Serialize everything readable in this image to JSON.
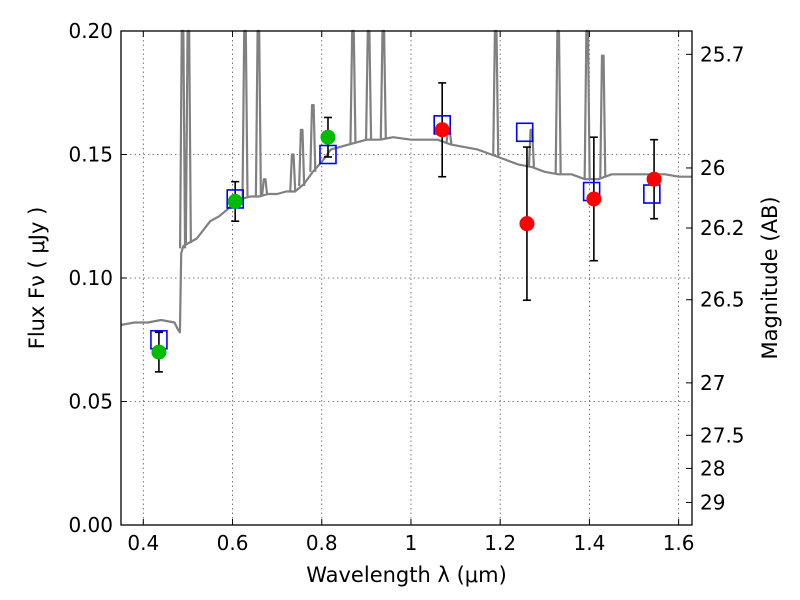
{
  "chart_data": {
    "type": "scatter",
    "xlabel": "Wavelength  λ (μm)",
    "ylabel": "Flux  Fν  ( μJy )",
    "y2label": "Magnitude (AB)",
    "xlim": [
      0.35,
      1.63
    ],
    "ylim": [
      0.0,
      0.2
    ],
    "grid": true,
    "x_ticks": [
      0.4,
      0.6,
      0.8,
      1.0,
      1.2,
      1.4,
      1.6
    ],
    "x_tick_labels": [
      "0.4",
      "0.6",
      "0.8",
      "1",
      "1.2",
      "1.4",
      "1.6"
    ],
    "y_ticks": [
      0.0,
      0.05,
      0.1,
      0.15,
      0.2
    ],
    "y_tick_labels": [
      "0.00",
      "0.05",
      "0.10",
      "0.15",
      "0.20"
    ],
    "y2_ticks": [
      25.7,
      26,
      26.2,
      26.5,
      27,
      27.5,
      28,
      29
    ],
    "y2_tick_labels": [
      "25.7",
      "26",
      "26.2",
      "26.5",
      "27",
      "27.5",
      "28",
      "29"
    ],
    "model_spectrum": {
      "color": "#808080",
      "x": [
        0.35,
        0.38,
        0.41,
        0.44,
        0.47,
        0.478,
        0.482,
        0.485,
        0.488,
        0.49,
        0.5,
        0.52,
        0.55,
        0.57,
        0.59,
        0.6,
        0.62,
        0.64,
        0.66,
        0.68,
        0.7,
        0.72,
        0.74,
        0.76,
        0.78,
        0.8,
        0.82,
        0.84,
        0.86,
        0.88,
        0.9,
        0.93,
        0.96,
        1.0,
        1.03,
        1.06,
        1.09,
        1.12,
        1.15,
        1.18,
        1.21,
        1.24,
        1.27,
        1.3,
        1.33,
        1.36,
        1.39,
        1.42,
        1.45,
        1.48,
        1.51,
        1.54,
        1.57,
        1.6,
        1.63
      ],
      "y": [
        0.081,
        0.082,
        0.082,
        0.083,
        0.082,
        0.079,
        0.078,
        0.11,
        0.112,
        0.113,
        0.114,
        0.116,
        0.123,
        0.125,
        0.128,
        0.13,
        0.132,
        0.133,
        0.133,
        0.134,
        0.134,
        0.135,
        0.135,
        0.138,
        0.143,
        0.147,
        0.152,
        0.153,
        0.154,
        0.155,
        0.156,
        0.156,
        0.157,
        0.156,
        0.156,
        0.156,
        0.154,
        0.153,
        0.152,
        0.15,
        0.148,
        0.146,
        0.145,
        0.143,
        0.142,
        0.142,
        0.14,
        0.14,
        0.142,
        0.142,
        0.142,
        0.142,
        0.142,
        0.141,
        0.141
      ],
      "emission_lines": [
        {
          "x": 0.488,
          "peak": 0.2
        },
        {
          "x": 0.501,
          "peak": 0.2
        },
        {
          "x": 0.628,
          "peak": 0.2
        },
        {
          "x": 0.658,
          "peak": 0.2
        },
        {
          "x": 0.672,
          "peak": 0.14
        },
        {
          "x": 0.735,
          "peak": 0.15
        },
        {
          "x": 0.755,
          "peak": 0.16
        },
        {
          "x": 0.78,
          "peak": 0.17
        },
        {
          "x": 0.87,
          "peak": 0.2
        },
        {
          "x": 0.905,
          "peak": 0.2
        },
        {
          "x": 0.938,
          "peak": 0.2
        },
        {
          "x": 1.085,
          "peak": 0.16
        },
        {
          "x": 1.19,
          "peak": 0.2
        },
        {
          "x": 1.27,
          "peak": 0.16
        },
        {
          "x": 1.33,
          "peak": 0.2
        },
        {
          "x": 1.395,
          "peak": 0.2
        },
        {
          "x": 1.43,
          "peak": 0.19
        }
      ]
    },
    "model_photometry": {
      "color": "#0000ff",
      "marker": "open-square",
      "points": [
        {
          "x": 0.435,
          "y": 0.075
        },
        {
          "x": 0.606,
          "y": 0.132
        },
        {
          "x": 0.814,
          "y": 0.15
        },
        {
          "x": 1.07,
          "y": 0.162
        },
        {
          "x": 1.255,
          "y": 0.159
        },
        {
          "x": 1.405,
          "y": 0.135
        },
        {
          "x": 1.54,
          "y": 0.134
        }
      ]
    },
    "observed_optical": {
      "color": "#00bb00",
      "marker": "filled-circle",
      "points": [
        {
          "x": 0.435,
          "y": 0.07,
          "err": 0.008
        },
        {
          "x": 0.606,
          "y": 0.131,
          "err": 0.008
        },
        {
          "x": 0.814,
          "y": 0.157,
          "err": 0.008
        }
      ]
    },
    "observed_nir": {
      "color": "#ff0000",
      "marker": "filled-circle",
      "points": [
        {
          "x": 1.07,
          "y": 0.16,
          "err": 0.019
        },
        {
          "x": 1.26,
          "y": 0.122,
          "err": 0.031
        },
        {
          "x": 1.41,
          "y": 0.132,
          "err": 0.025
        },
        {
          "x": 1.545,
          "y": 0.14,
          "err": 0.016
        }
      ]
    }
  }
}
